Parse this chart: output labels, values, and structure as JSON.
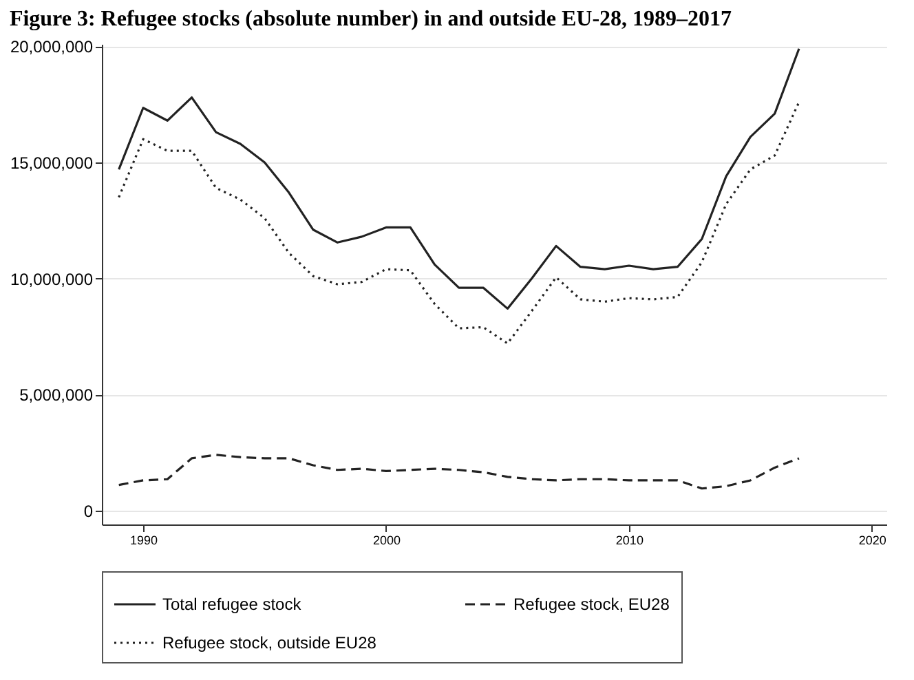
{
  "chart_data": {
    "type": "line",
    "title": "Figure 3:      Refugee stocks (absolute number) in and outside EU-28, 1989–2017",
    "x": [
      1989,
      1990,
      1991,
      1992,
      1993,
      1994,
      1995,
      1996,
      1997,
      1998,
      1999,
      2000,
      2001,
      2002,
      2003,
      2004,
      2005,
      2006,
      2007,
      2008,
      2009,
      2010,
      2011,
      2012,
      2013,
      2014,
      2015,
      2016,
      2017
    ],
    "series": [
      {
        "name": "Total refugee stock",
        "color": "#222222",
        "line_style": "solid",
        "values": [
          14700000,
          17350000,
          16800000,
          17800000,
          16300000,
          15800000,
          15000000,
          13700000,
          12100000,
          11550000,
          11800000,
          12200000,
          12200000,
          10600000,
          9600000,
          9600000,
          8700000,
          10000000,
          11400000,
          10500000,
          10400000,
          10550000,
          10400000,
          10500000,
          11700000,
          14400000,
          16100000,
          17100000,
          19900000
        ]
      },
      {
        "name": "Refugee stock, EU28",
        "color": "#222222",
        "line_style": "dashed",
        "values": [
          1100000,
          1300000,
          1350000,
          2250000,
          2400000,
          2300000,
          2250000,
          2250000,
          1950000,
          1750000,
          1800000,
          1700000,
          1750000,
          1800000,
          1750000,
          1650000,
          1450000,
          1350000,
          1300000,
          1350000,
          1350000,
          1300000,
          1300000,
          1300000,
          950000,
          1050000,
          1300000,
          1850000,
          2250000
        ]
      },
      {
        "name": "Refugee stock, outside EU28",
        "color": "#222222",
        "line_style": "dotted",
        "values": [
          13500000,
          16000000,
          15500000,
          15500000,
          13900000,
          13400000,
          12600000,
          11100000,
          10100000,
          9750000,
          9850000,
          10400000,
          10350000,
          8900000,
          7850000,
          7900000,
          7200000,
          8600000,
          10050000,
          9100000,
          9000000,
          9150000,
          9100000,
          9200000,
          10700000,
          13200000,
          14700000,
          15300000,
          17600000
        ]
      }
    ],
    "xlim": [
      1988.3,
      2020.6
    ],
    "xticks": [
      1990,
      2000,
      2010,
      2020
    ],
    "ylim": [
      -600000,
      20100000
    ],
    "yticks": [
      {
        "value": 0,
        "label": "0"
      },
      {
        "value": 5000000,
        "label": "5,000,000"
      },
      {
        "value": 10000000,
        "label": "10,000,000"
      },
      {
        "value": 15000000,
        "label": "15,000,000"
      },
      {
        "value": 20000000,
        "label": "20,000,000"
      }
    ],
    "grid": "y",
    "legend": "bottom"
  }
}
